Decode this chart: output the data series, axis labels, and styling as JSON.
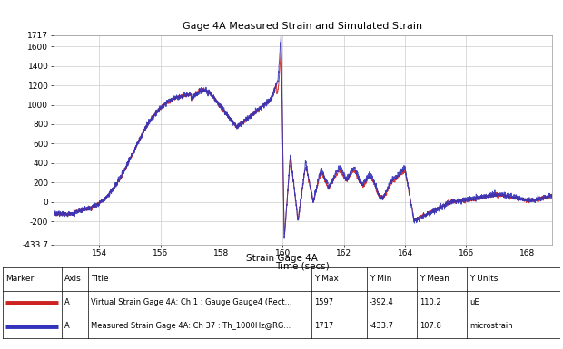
{
  "title": "Gage 4A Measured Strain and Simulated Strain",
  "xlabel": "Time (secs)",
  "table_title": "Strain Gage 4A",
  "xmin": 152.5,
  "xmax": 168.8,
  "ymin": -433.7,
  "ymax": 1717,
  "yticks": [
    1717,
    1600,
    1400,
    1200,
    1000,
    800,
    600,
    400,
    200,
    0,
    -200,
    -433.7
  ],
  "xticks": [
    154,
    156,
    158,
    160,
    162,
    164,
    166,
    168
  ],
  "simulated_color": "#cc2222",
  "measured_color": "#3333bb",
  "table_headers": [
    "Marker",
    "Axis",
    "Title",
    "Y Max",
    "Y Min",
    "Y Mean",
    "Y Units"
  ],
  "table_rows": [
    [
      "sim",
      "A",
      "Virtual Strain Gage 4A: Ch 1 : Gauge Gauge4 (Rect...",
      "1597",
      "-392.4",
      "110.2",
      "uE"
    ],
    [
      "meas",
      "A",
      "Measured Strain Gage 4A: Ch 37 : Th_1000Hz@RG...",
      "1717",
      "-433.7",
      "107.8",
      "microstrain"
    ]
  ],
  "sim_color_table": "#cc2222",
  "meas_color_table": "#3333bb"
}
